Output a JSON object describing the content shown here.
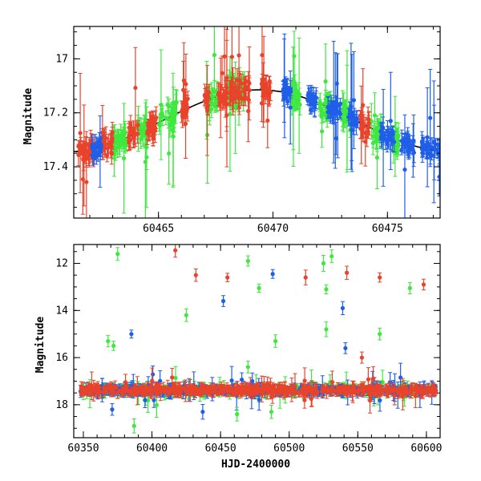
{
  "chart_data": [
    {
      "type": "scatter",
      "title": "",
      "xlabel": "",
      "ylabel": "Magnitude",
      "xlim": [
        60461.3,
        60477.3
      ],
      "ylim": [
        17.59,
        16.88
      ],
      "y_inverted": true,
      "xticks": [
        60465,
        60470,
        60475
      ],
      "yticks": [
        17.0,
        17.2,
        17.4
      ],
      "xtick_labels": [
        "60465",
        "60470",
        "60475"
      ],
      "ytick_labels": [
        "17",
        "17.2",
        "17.4"
      ],
      "model_curve": {
        "color": "#000000",
        "mean": 17.23,
        "amplitude": 0.115,
        "peak_x": 60469.4,
        "period": 17.0
      },
      "series_colors": {
        "red": "#e8432b",
        "green": "#3ee83e",
        "blue": "#1f5ee8"
      },
      "series": [
        {
          "color": "red",
          "segments": [
            [
              60461.5,
              60462.2
            ],
            [
              60462.5,
              60463.0
            ],
            [
              60463.7,
              60464.1
            ],
            [
              60464.5,
              60464.9
            ],
            [
              60466.0,
              60466.3
            ],
            [
              60467.0,
              60467.2
            ],
            [
              60467.6,
              60468.0
            ],
            [
              60468.1,
              60469.0
            ],
            [
              60469.5,
              60469.9
            ],
            [
              60473.8,
              60474.2
            ]
          ]
        },
        {
          "color": "green",
          "segments": [
            [
              60463.0,
              60463.6
            ],
            [
              60464.1,
              60464.5
            ],
            [
              60465.0,
              60465.8
            ],
            [
              60467.1,
              60467.6
            ],
            [
              60468.0,
              60468.8
            ],
            [
              60470.8,
              60471.2
            ],
            [
              60472.0,
              60472.6
            ],
            [
              60473.0,
              60473.4
            ],
            [
              60474.3,
              60474.8
            ],
            [
              60475.2,
              60475.5
            ]
          ]
        },
        {
          "color": "blue",
          "segments": [
            [
              60462.1,
              60462.5
            ],
            [
              60470.4,
              60470.8
            ],
            [
              60471.5,
              60471.9
            ],
            [
              60472.4,
              60473.0
            ],
            [
              60473.3,
              60473.7
            ],
            [
              60474.7,
              60475.3
            ],
            [
              60475.6,
              60476.2
            ],
            [
              60476.5,
              60477.3
            ]
          ]
        }
      ]
    },
    {
      "type": "scatter",
      "title": "",
      "xlabel": "HJD-2400000",
      "ylabel": "Magnitude",
      "xlim": [
        60343,
        60610
      ],
      "ylim": [
        19.4,
        11.2
      ],
      "y_inverted": true,
      "xticks": [
        60350,
        60400,
        60450,
        60500,
        60550,
        60600
      ],
      "yticks": [
        12,
        14,
        16,
        18
      ],
      "xtick_labels": [
        "60350",
        "60400",
        "60450",
        "60500",
        "60550",
        "60600"
      ],
      "ytick_labels": [
        "12",
        "14",
        "16",
        "18"
      ],
      "baseline_magnitude": 17.38,
      "outliers": [
        {
          "x": 60375,
          "y": 11.6,
          "color": "green"
        },
        {
          "x": 60417,
          "y": 11.45,
          "color": "red"
        },
        {
          "x": 60432,
          "y": 12.5,
          "color": "red"
        },
        {
          "x": 60455,
          "y": 12.6,
          "color": "red"
        },
        {
          "x": 60470,
          "y": 11.9,
          "color": "green"
        },
        {
          "x": 60488,
          "y": 12.45,
          "color": "blue"
        },
        {
          "x": 60512,
          "y": 12.6,
          "color": "red"
        },
        {
          "x": 60525,
          "y": 12.0,
          "color": "green"
        },
        {
          "x": 60531,
          "y": 11.7,
          "color": "green"
        },
        {
          "x": 60542,
          "y": 12.4,
          "color": "red"
        },
        {
          "x": 60566,
          "y": 12.6,
          "color": "red"
        },
        {
          "x": 60588,
          "y": 13.05,
          "color": "green"
        },
        {
          "x": 60598,
          "y": 12.9,
          "color": "red"
        },
        {
          "x": 60478,
          "y": 13.05,
          "color": "green"
        },
        {
          "x": 60527,
          "y": 13.1,
          "color": "green"
        },
        {
          "x": 60452,
          "y": 13.6,
          "color": "blue"
        },
        {
          "x": 60539,
          "y": 13.9,
          "color": "blue"
        },
        {
          "x": 60425,
          "y": 14.2,
          "color": "green"
        },
        {
          "x": 60385,
          "y": 15.0,
          "color": "blue"
        },
        {
          "x": 60566,
          "y": 15.0,
          "color": "green"
        },
        {
          "x": 60527,
          "y": 14.8,
          "color": "green"
        },
        {
          "x": 60372,
          "y": 15.5,
          "color": "green"
        },
        {
          "x": 60368,
          "y": 15.3,
          "color": "green"
        },
        {
          "x": 60490,
          "y": 15.3,
          "color": "green"
        },
        {
          "x": 60541,
          "y": 15.6,
          "color": "blue"
        },
        {
          "x": 60553,
          "y": 16.0,
          "color": "red"
        },
        {
          "x": 60470,
          "y": 16.4,
          "color": "green"
        },
        {
          "x": 60371,
          "y": 18.2,
          "color": "blue"
        },
        {
          "x": 60437,
          "y": 18.3,
          "color": "blue"
        },
        {
          "x": 60462,
          "y": 18.4,
          "color": "green"
        },
        {
          "x": 60487,
          "y": 18.3,
          "color": "green"
        },
        {
          "x": 60387,
          "y": 18.9,
          "color": "green"
        }
      ]
    }
  ]
}
